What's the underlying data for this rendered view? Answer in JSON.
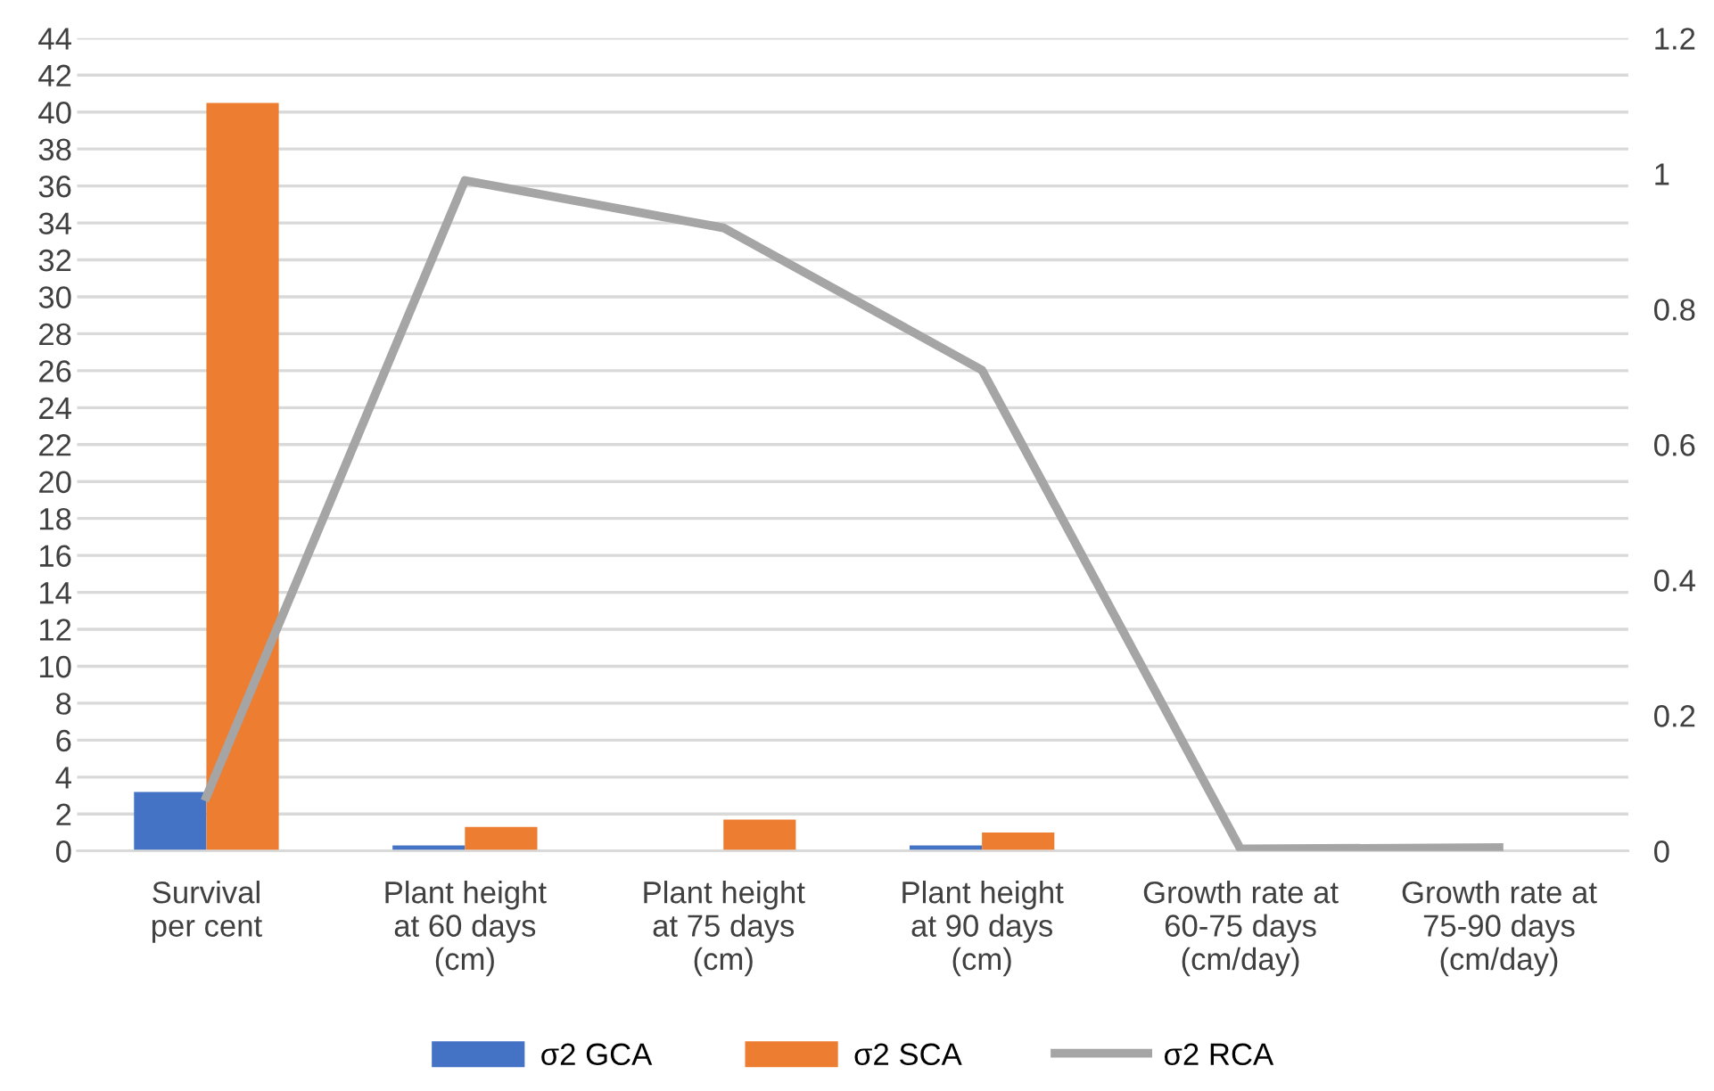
{
  "chart_data": {
    "type": "bar",
    "categories": [
      "Survival\nper cent",
      "Plant height\nat 60 days\n(cm)",
      "Plant height\nat 75 days\n(cm)",
      "Plant height\nat 90 days\n(cm)",
      "Growth rate at\n60-75 days\n(cm/day)",
      "Growth rate at\n75-90 days\n(cm/day)"
    ],
    "series": [
      {
        "name": "σ2 GCA",
        "color": "#4472c4",
        "values": [
          3.2,
          0.3,
          0,
          0.3,
          0,
          0
        ]
      },
      {
        "name": "σ2 SCA",
        "color": "#ed7d31",
        "values": [
          40.5,
          1.3,
          1.7,
          1.0,
          0,
          0
        ]
      },
      {
        "name": "σ2 RCA",
        "type": "line",
        "axis": "y2",
        "color": "#a5a5a5",
        "values": [
          0.08,
          0.99,
          0.92,
          0.71,
          0.003,
          0.005
        ]
      }
    ],
    "ylim": [
      0,
      44
    ],
    "yticks": [
      0,
      2,
      4,
      6,
      8,
      10,
      12,
      14,
      16,
      18,
      20,
      22,
      24,
      26,
      28,
      30,
      32,
      34,
      36,
      38,
      40,
      42,
      44
    ],
    "y2lim": [
      0,
      1.2
    ],
    "y2ticks": [
      0,
      0.2,
      0.4,
      0.6,
      0.8,
      1,
      1.2
    ],
    "grid": "y",
    "legend": "bottom",
    "marker": "none",
    "line_style": "solid"
  }
}
